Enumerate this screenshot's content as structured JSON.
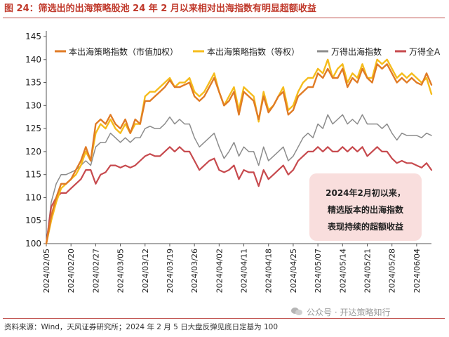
{
  "figure": {
    "title": "图 24：筛选出的出海策略股池 24 年 2 月以来相对出海指数有明显超额收益",
    "source": "资料来源：Wind，天风证券研究所；2024 年 2 月 5 日大盘反弹见底日定基为 100",
    "watermark": "公众号 · 开达策略知行",
    "annotation": [
      "2024年2月初以来，",
      "精选版本的出海指数",
      "表现持续的超额收益"
    ]
  },
  "chart_data": {
    "type": "line",
    "title": "",
    "xlabel": "",
    "ylabel": "",
    "ylim": [
      100,
      145
    ],
    "yticks": [
      100,
      105,
      110,
      115,
      120,
      125,
      130,
      135,
      140,
      145
    ],
    "grid": false,
    "legend_position": "top",
    "x": [
      "2024/02/05",
      "2024/02/06",
      "2024/02/07",
      "2024/02/08",
      "2024/02/19",
      "2024/02/20",
      "2024/02/21",
      "2024/02/22",
      "2024/02/23",
      "2024/02/26",
      "2024/02/27",
      "2024/02/28",
      "2024/02/29",
      "2024/03/01",
      "2024/03/04",
      "2024/03/05",
      "2024/03/06",
      "2024/03/07",
      "2024/03/08",
      "2024/03/11",
      "2024/03/12",
      "2024/03/13",
      "2024/03/14",
      "2024/03/15",
      "2024/03/18",
      "2024/03/19",
      "2024/03/20",
      "2024/03/21",
      "2024/03/22",
      "2024/03/25",
      "2024/03/26",
      "2024/03/27",
      "2024/03/28",
      "2024/03/29",
      "2024/04/01",
      "2024/04/02",
      "2024/04/03",
      "2024/04/08",
      "2024/04/09",
      "2024/04/10",
      "2024/04/11",
      "2024/04/12",
      "2024/04/15",
      "2024/04/16",
      "2024/04/17",
      "2024/04/18",
      "2024/04/19",
      "2024/04/22",
      "2024/04/23",
      "2024/04/24",
      "2024/04/25",
      "2024/04/26",
      "2024/04/29",
      "2024/04/30",
      "2024/05/06",
      "2024/05/07",
      "2024/05/08",
      "2024/05/09",
      "2024/05/10",
      "2024/05/13",
      "2024/05/14",
      "2024/05/15",
      "2024/05/16",
      "2024/05/17",
      "2024/05/20",
      "2024/05/21",
      "2024/05/22",
      "2024/05/23",
      "2024/05/24",
      "2024/05/27",
      "2024/05/28",
      "2024/05/29",
      "2024/05/30",
      "2024/05/31",
      "2024/06/03",
      "2024/06/04",
      "2024/06/05",
      "2024/06/06",
      "2024/06/07"
    ],
    "xticks": [
      "2024/02/05",
      "2024/02/20",
      "2024/02/27",
      "2024/03/05",
      "2024/03/12",
      "2024/03/19",
      "2024/03/26",
      "2024/04/02",
      "2024/04/11",
      "2024/04/18",
      "2024/04/25",
      "2024/05/07",
      "2024/05/14",
      "2024/05/21",
      "2024/05/28",
      "2024/06/04"
    ],
    "series": [
      {
        "name": "本出海策略指数（市值加权）",
        "color": "#e07b25",
        "width": 2.4,
        "values": [
          100,
          106,
          110,
          113,
          113,
          114,
          116,
          118,
          121,
          118,
          126,
          127,
          126,
          128,
          126,
          125,
          127,
          124,
          127,
          126,
          131,
          131,
          132,
          133,
          134,
          135.5,
          134,
          134,
          134.5,
          135,
          132,
          131,
          132,
          134,
          136,
          133,
          130,
          131,
          133,
          128,
          133,
          132,
          131,
          127,
          132,
          128.5,
          130,
          132,
          133,
          128,
          129,
          132,
          133,
          134,
          134,
          137,
          136,
          138,
          136,
          136,
          138,
          134,
          136,
          135,
          138,
          136,
          135,
          139,
          138,
          139,
          137,
          135,
          136,
          135,
          136,
          135,
          134.5,
          137,
          134.5
        ]
      },
      {
        "name": "本出海策略指数（等权）",
        "color": "#f5bc1c",
        "width": 2.4,
        "values": [
          100,
          105,
          109,
          112,
          113,
          114,
          115,
          117,
          120,
          118,
          124,
          126,
          125,
          127,
          125,
          124,
          126,
          124,
          126,
          126,
          132,
          133,
          133,
          134,
          135,
          136,
          134,
          135,
          135,
          136,
          133,
          132,
          133,
          135,
          137,
          133,
          130,
          132,
          134,
          129,
          134,
          133,
          132,
          126.5,
          133,
          129,
          130,
          132,
          134,
          129,
          130,
          133,
          135,
          136,
          136,
          138,
          137,
          140,
          136,
          138,
          139,
          135,
          137,
          136,
          139,
          136,
          136,
          140,
          139,
          140,
          138,
          136,
          137,
          136,
          137,
          136,
          135,
          136,
          132.5
        ]
      },
      {
        "name": "万得出海指数",
        "color": "#8c8c8c",
        "width": 1.5,
        "values": [
          100,
          109,
          113,
          115,
          115,
          115.5,
          116,
          117,
          118,
          117,
          121,
          122,
          122,
          124,
          123,
          122,
          123,
          122,
          123,
          123,
          125,
          125.5,
          125,
          125,
          126,
          127.5,
          126,
          127,
          126,
          126,
          123,
          121,
          122,
          123,
          124,
          121,
          118.5,
          120,
          122,
          119,
          121,
          120,
          120,
          117,
          121,
          118,
          119,
          120,
          121,
          118,
          119,
          121,
          123,
          124,
          123,
          126,
          125,
          128,
          126,
          127,
          128,
          126,
          127,
          126,
          128,
          126,
          126,
          126,
          125,
          126,
          124,
          122.5,
          124,
          123.5,
          123.5,
          123.5,
          123,
          124,
          123.5
        ]
      },
      {
        "name": "万得全A",
        "color": "#c74a4e",
        "width": 2.2,
        "values": [
          100,
          108,
          110,
          111,
          111,
          112,
          113,
          114,
          116,
          116,
          113,
          115,
          115.5,
          117,
          117,
          116.5,
          117,
          116.5,
          117,
          118,
          119,
          119.5,
          119,
          119,
          120,
          121,
          120,
          121,
          120,
          120,
          118,
          116,
          117,
          118,
          118.5,
          116,
          115.5,
          116,
          117,
          114,
          116,
          115.5,
          115.5,
          112.5,
          116,
          114,
          115,
          116,
          117,
          115,
          116,
          118,
          119,
          120,
          120,
          121,
          120,
          121,
          120,
          120,
          121,
          120,
          121,
          120,
          121,
          119,
          120,
          121,
          120,
          120,
          118.5,
          117.5,
          118,
          117.5,
          117.5,
          117,
          116.5,
          117.5,
          116
        ]
      }
    ]
  }
}
